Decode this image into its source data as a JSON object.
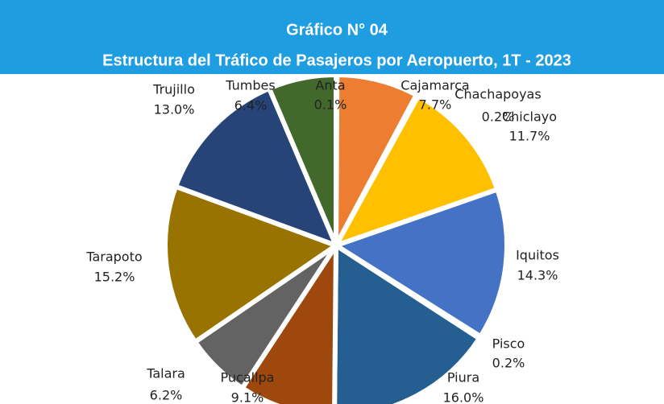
{
  "chart_data": {
    "type": "pie",
    "title": "Gráfico N° 04",
    "subtitle": "Estructura del Tráfico de Pasajeros por Aeropuerto, 1T - 2023",
    "categories": [
      "Anta",
      "Cajamarca",
      "Chachapoyas",
      "Chiclayo",
      "Iquitos",
      "Pisco",
      "Piura",
      "Pucallpa",
      "Talara",
      "Tarapoto",
      "Trujillo",
      "Tumbes"
    ],
    "values": [
      0.1,
      7.7,
      0.2,
      11.7,
      14.3,
      0.2,
      16.0,
      9.1,
      6.2,
      15.2,
      13.0,
      6.4
    ],
    "value_labels": [
      "0.1%",
      "7.7%",
      "0.2%",
      "11.7%",
      "14.3%",
      "0.2%",
      "16.0%",
      "9.1%",
      "6.2%",
      "15.2%",
      "13.0%",
      "6.4%"
    ],
    "colors": [
      "#a5a5a5",
      "#ed7d31",
      "#a5a5a5",
      "#ffc000",
      "#4472c4",
      "#70ad47",
      "#255e91",
      "#9e480e",
      "#636363",
      "#997300",
      "#264478",
      "#43682b"
    ]
  }
}
